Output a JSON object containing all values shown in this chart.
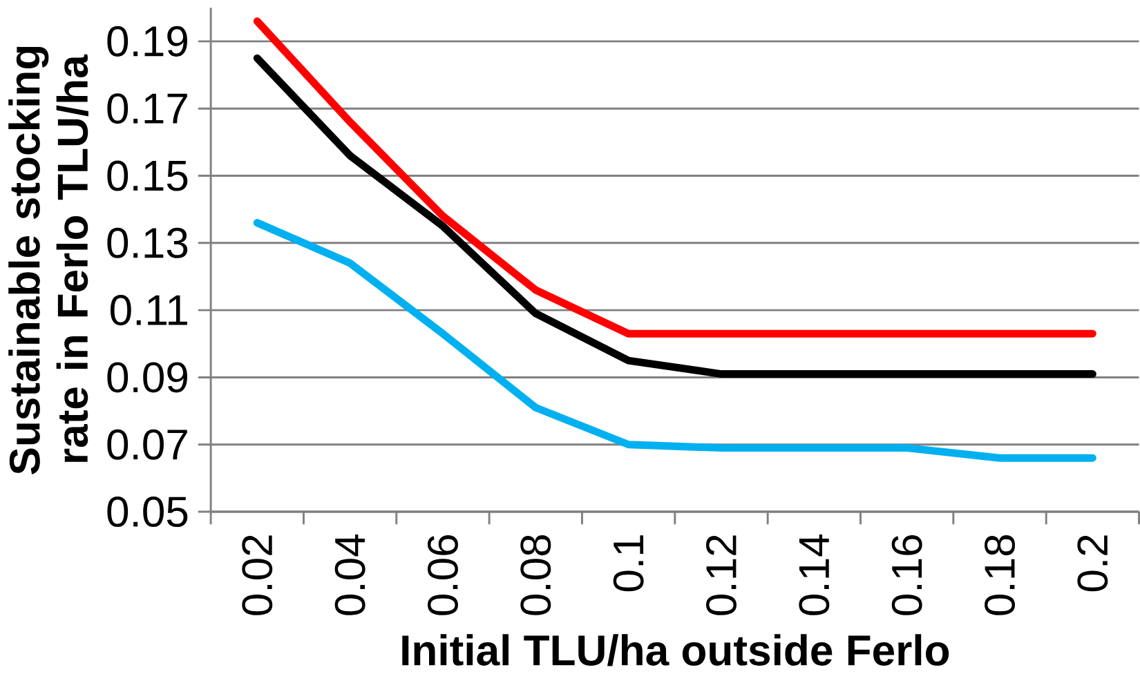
{
  "chart_data": {
    "type": "line",
    "xlabel": "Initial TLU/ha outside Ferlo",
    "ylabel": "Sustainable stocking rate in Ferlo TLU/ha",
    "categories": [
      "0.02",
      "0.04",
      "0.06",
      "0.08",
      "0.1",
      "0.12",
      "0.14",
      "0.16",
      "0.18",
      "0.2"
    ],
    "series": [
      {
        "color": "#ff0000",
        "values": [
          0.196,
          0.166,
          0.138,
          0.116,
          0.103,
          0.103,
          0.103,
          0.103,
          0.103,
          0.103
        ]
      },
      {
        "color": "#000000",
        "values": [
          0.185,
          0.156,
          0.135,
          0.109,
          0.095,
          0.091,
          0.091,
          0.091,
          0.091,
          0.091
        ]
      },
      {
        "color": "#00b0f0",
        "values": [
          0.136,
          0.124,
          0.103,
          0.081,
          0.07,
          0.069,
          0.069,
          0.069,
          0.066,
          0.066
        ]
      }
    ],
    "ylim": [
      0.05,
      0.2
    ],
    "yticks": [
      0.05,
      0.07,
      0.09,
      0.11,
      0.13,
      0.15,
      0.17,
      0.19
    ],
    "grid": "y",
    "marker": "none",
    "line_style": "solid"
  }
}
